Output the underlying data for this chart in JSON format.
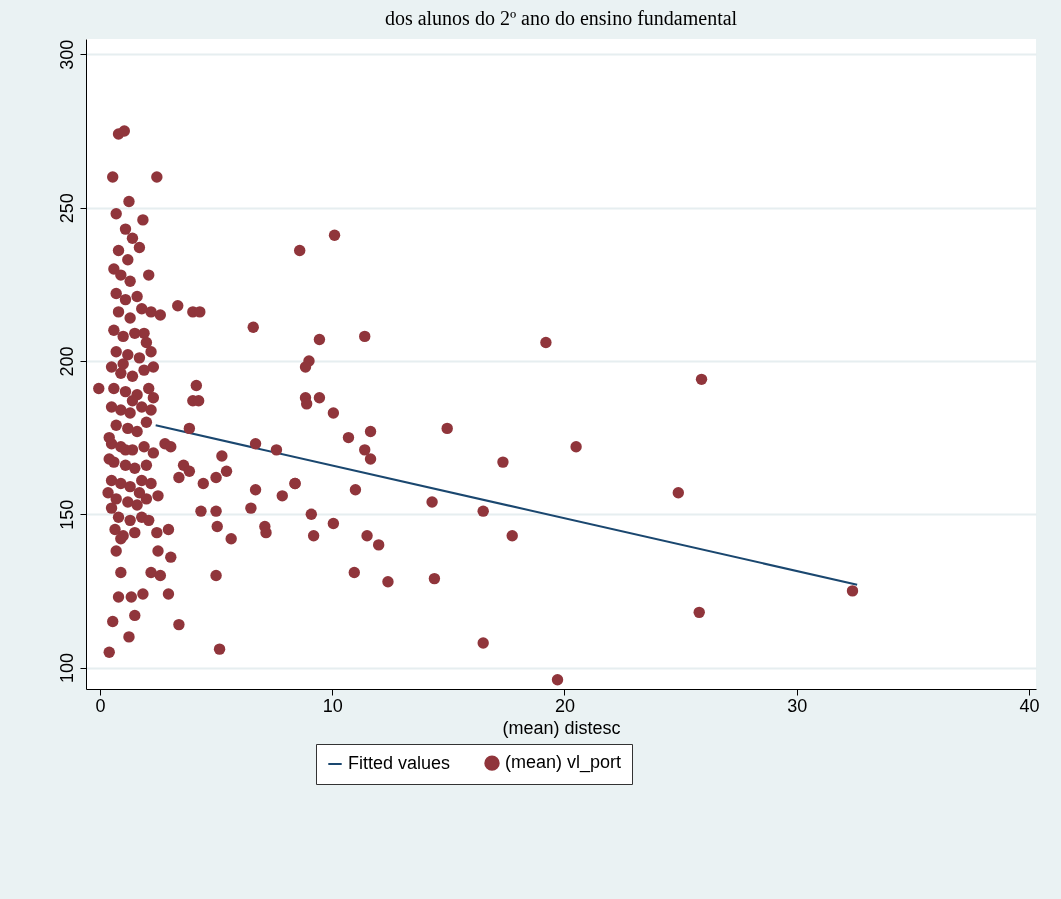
{
  "chart_data": {
    "type": "scatter",
    "title": "dos alunos do 2º ano do ensino fundamental",
    "xlabel": "(mean) distesc",
    "xlim": [
      -0.6,
      40.3
    ],
    "ylim": [
      93,
      305
    ],
    "xticks": [
      0,
      10,
      20,
      30,
      40
    ],
    "yticks": [
      100,
      150,
      200,
      250,
      300
    ],
    "grid": "y",
    "legend": "bottom",
    "series": [
      {
        "name": "Fitted values",
        "type": "line",
        "color": "#1a476f",
        "x": [
          2.4,
          32.6
        ],
        "values": [
          179,
          127
        ]
      },
      {
        "name": "(mean) vl_port",
        "marker": "circle",
        "color": "#90353b",
        "x": [
          10.1,
          8.6,
          9.45,
          11.4,
          19.2,
          9.0,
          8.85,
          25.9,
          8.85,
          8.9,
          9.45,
          10.05,
          10.7,
          11.65,
          11.4,
          11.65,
          14.95,
          20.5,
          17.35,
          8.4,
          11.0,
          24.9,
          14.3,
          16.5,
          9.1,
          10.05,
          9.2,
          11.5,
          12.0,
          17.75,
          10.95,
          12.4,
          14.4,
          32.4,
          25.8,
          16.5,
          19.7,
          2.45,
          0.8,
          1.05,
          0.55,
          1.25,
          0.7,
          1.85,
          1.7,
          1.1,
          2.1,
          3.35,
          4.0,
          4.3,
          2.2,
          2.6,
          1.9,
          6.6,
          4.15,
          4.0,
          4.25,
          -0.05,
          2.3,
          3.85,
          6.7,
          7.6,
          2.8,
          3.05,
          3.6,
          3.85,
          3.4,
          4.45,
          5.0,
          5.25,
          5.45,
          6.7,
          7.85,
          8.4,
          2.5,
          0.35,
          4.35,
          5.0,
          5.05,
          5.65,
          6.5,
          7.1,
          7.15,
          2.95,
          2.45,
          2.5,
          3.05,
          2.2,
          2.6,
          2.95,
          1.85,
          5.0,
          3.4,
          5.15,
          0.4,
          1.25,
          0.55,
          0.8,
          1.35,
          0.9,
          1.5,
          0.7,
          0.65,
          0.9,
          0.6,
          0.9,
          1.3,
          0.7,
          1.1,
          1.6,
          0.8,
          1.3,
          1.8,
          0.6,
          1.0,
          1.5,
          2.0,
          0.7,
          1.2,
          1.7,
          2.2,
          2.3,
          0.5,
          0.9,
          1.4,
          1.9,
          0.6,
          1.1,
          1.6,
          2.1,
          0.5,
          0.9,
          1.3,
          1.8,
          0.7,
          1.2,
          1.6,
          2.0,
          0.5,
          0.9,
          1.4,
          1.9,
          0.6,
          1.1,
          1.5,
          2.0,
          0.5,
          0.9,
          1.3,
          1.8,
          2.2,
          0.7,
          1.2,
          1.6,
          2.0,
          0.8,
          1.3,
          1.8,
          1.0,
          1.5,
          0.4,
          0.4,
          2.3,
          2.2,
          1.2,
          0.8,
          1.4,
          1.0,
          1.4,
          1.1,
          1.7,
          2.1,
          0.5
        ],
        "values": [
          241,
          236,
          207,
          208,
          206,
          200,
          198,
          194,
          188,
          186,
          188,
          183,
          175,
          177,
          171,
          168,
          178,
          172,
          167,
          160,
          158,
          157,
          154,
          151,
          150,
          147,
          143,
          143,
          140,
          143,
          131,
          128,
          129,
          125,
          118,
          108,
          96,
          260,
          274,
          275,
          260,
          252,
          248,
          246,
          237,
          243,
          228,
          218,
          216,
          216,
          216,
          215,
          209,
          211,
          192,
          187,
          187,
          191,
          188,
          178,
          173,
          171,
          173,
          172,
          166,
          164,
          162,
          160,
          162,
          169,
          164,
          158,
          156,
          160,
          156,
          157,
          151,
          151,
          146,
          142,
          152,
          146,
          144,
          145,
          144,
          138,
          136,
          131,
          130,
          124,
          124,
          130,
          114,
          106,
          105,
          110,
          115,
          123,
          123,
          131,
          117,
          138,
          145,
          142,
          230,
          228,
          226,
          222,
          220,
          221,
          216,
          214,
          217,
          210,
          208,
          209,
          206,
          203,
          202,
          201,
          203,
          198,
          198,
          196,
          195,
          197,
          191,
          190,
          189,
          191,
          185,
          184,
          183,
          185,
          179,
          178,
          177,
          180,
          173,
          172,
          171,
          172,
          167,
          166,
          165,
          166,
          161,
          160,
          159,
          161,
          160,
          155,
          154,
          153,
          155,
          149,
          148,
          149,
          143,
          144,
          175,
          168,
          170,
          184,
          233,
          236,
          240,
          199,
          187,
          171,
          157,
          148,
          152
        ]
      }
    ]
  }
}
